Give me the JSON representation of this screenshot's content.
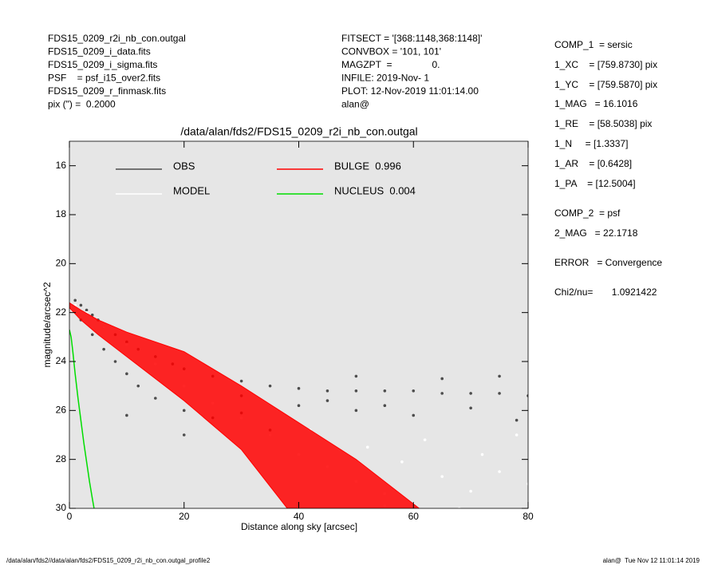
{
  "header": {
    "left": [
      "FDS15_0209_r2i_nb_con.outgal",
      "FDS15_0209_i_data.fits",
      "FDS15_0209_i_sigma.fits",
      "PSF    = psf_i15_over2.fits",
      "FDS15_0209_r_finmask.fits",
      "pix (\") =  0.2000"
    ],
    "middle": [
      "FITSECT = '[368:1148,368:1148]'",
      "CONVBOX = '101, 101'",
      "MAGZPT  =               0.",
      "INFILE: 2019-Nov- 1",
      "PLOT: 12-Nov-2019 11:01:14.00",
      "alan@"
    ],
    "right": [
      "COMP_1  = sersic",
      "1_XC    = [759.8730] pix",
      "1_YC    = [759.5870] pix",
      "1_MAG   = 16.1016",
      "1_RE    = [58.5038] pix",
      "1_N     = [1.3337]",
      "1_AR    = [0.6428]",
      "1_PA    = [12.5004]",
      "COMP_2  = psf",
      "2_MAG   = 22.1718",
      "ERROR   = Convergence",
      "Chi2/nu=       1.0921422"
    ]
  },
  "footer": {
    "left": "/data/alan/fds2//data/alan/fds2/FDS15_0209_r2i_nb_con.outgal_profile2",
    "right": "alan@  Tue Nov 12 11:01:14 2019"
  },
  "chart_data": {
    "type": "scatter",
    "title": "/data/alan/fds2/FDS15_0209_r2i_nb_con.outgal",
    "x_label": "Distance along sky [arcsec]",
    "y_label": "magnitude/arcsec^2",
    "xlim": [
      0,
      80
    ],
    "xticks": [
      0,
      20,
      40,
      60,
      80
    ],
    "ylim": [
      30,
      15
    ],
    "yticks": [
      16,
      18,
      20,
      22,
      24,
      26,
      28,
      30
    ],
    "series": [
      {
        "name": "OBS",
        "color": "#4d4d4d",
        "mode": "markers",
        "x": [
          1,
          2,
          3,
          4,
          5,
          6,
          8,
          10,
          12,
          15,
          18,
          20,
          25,
          30,
          35,
          40,
          45,
          50,
          55,
          60,
          65,
          70,
          75,
          80,
          2,
          4,
          6,
          8,
          10,
          12,
          15,
          20,
          25,
          30,
          40,
          50,
          60,
          70,
          78,
          50,
          65,
          75,
          30,
          45,
          55,
          10,
          20,
          35
        ],
        "values": [
          21.5,
          21.7,
          21.9,
          22.1,
          22.3,
          22.6,
          22.9,
          23.2,
          23.5,
          23.8,
          24.1,
          24.3,
          24.6,
          24.8,
          25.0,
          25.1,
          25.2,
          25.2,
          25.2,
          25.2,
          25.3,
          25.3,
          25.3,
          25.4,
          22.3,
          22.9,
          23.5,
          24.0,
          24.5,
          25.0,
          25.5,
          26.0,
          26.3,
          26.1,
          25.8,
          26.0,
          26.2,
          25.9,
          26.4,
          24.6,
          24.7,
          24.6,
          25.4,
          25.6,
          25.8,
          26.2,
          27.0,
          26.8
        ]
      },
      {
        "name": "MODEL",
        "color": "#ffffff",
        "mode": "markers",
        "x": [
          1,
          3,
          6,
          10,
          15,
          20,
          25,
          30,
          35,
          40,
          45,
          50,
          55,
          60,
          65,
          70,
          75,
          80,
          42,
          52,
          62,
          72,
          78,
          55,
          68,
          58
        ],
        "values": [
          21.7,
          22.0,
          22.6,
          23.3,
          24.1,
          25.0,
          25.7,
          26.3,
          27.0,
          27.8,
          28.3,
          28.9,
          29.4,
          29.8,
          28.7,
          29.3,
          28.5,
          29.0,
          26.8,
          27.5,
          27.2,
          27.8,
          27.0,
          29.9,
          30,
          28.1
        ]
      },
      {
        "name": "BULGE  0.996",
        "color": "#ff0000",
        "mode": "band",
        "x": [
          0,
          2,
          5,
          10,
          20,
          30,
          40,
          50,
          61
        ],
        "values": [
          21.6,
          21.9,
          22.3,
          22.8,
          23.6,
          25.0,
          26.5,
          28.0,
          30
        ],
        "x2": [
          0,
          2,
          5,
          10,
          20,
          30,
          38
        ],
        "values2": [
          21.8,
          22.3,
          22.9,
          23.8,
          25.6,
          27.6,
          30
        ]
      },
      {
        "name": "NUCLEUS  0.004",
        "color": "#00dd00",
        "mode": "line",
        "x": [
          0,
          0.3,
          0.6,
          1,
          1.5,
          2,
          2.5,
          3,
          3.5,
          4,
          4.3
        ],
        "values": [
          22.7,
          23,
          23.6,
          24.5,
          25.5,
          26.4,
          27.3,
          28.1,
          28.9,
          29.6,
          30
        ]
      }
    ]
  }
}
